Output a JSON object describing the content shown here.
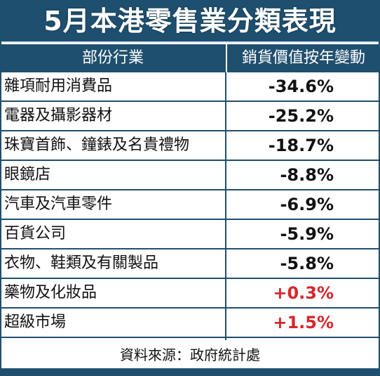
{
  "title": "5月本港零售業分類表現",
  "header": {
    "category": "部份行業",
    "value": "銷貨價值按年變動"
  },
  "source": "資料來源：政府統計處",
  "colors": {
    "header_bg": "#1f4f6e",
    "negative": "#111111",
    "positive": "#d8262a"
  },
  "chart_data": {
    "type": "table",
    "title": "5月本港零售業分類表現",
    "columns": [
      "部份行業",
      "銷貨價值按年變動"
    ],
    "categories": [
      "雜項耐用消費品",
      "電器及攝影器材",
      "珠寶首飾、鐘錶及名貴禮物",
      "眼鏡店",
      "汽車及汽車零件",
      "百貨公司",
      "衣物、鞋類及有關製品",
      "藥物及化妝品",
      "超級市場"
    ],
    "values": [
      -34.6,
      -25.2,
      -18.7,
      -8.8,
      -6.9,
      -5.9,
      -5.8,
      0.3,
      1.5
    ],
    "labels": [
      "-34.6%",
      "-25.2%",
      "-18.7%",
      "-8.8%",
      "-6.9%",
      "-5.9%",
      "-5.8%",
      "+0.3%",
      "+1.5%"
    ],
    "unit": "%"
  }
}
